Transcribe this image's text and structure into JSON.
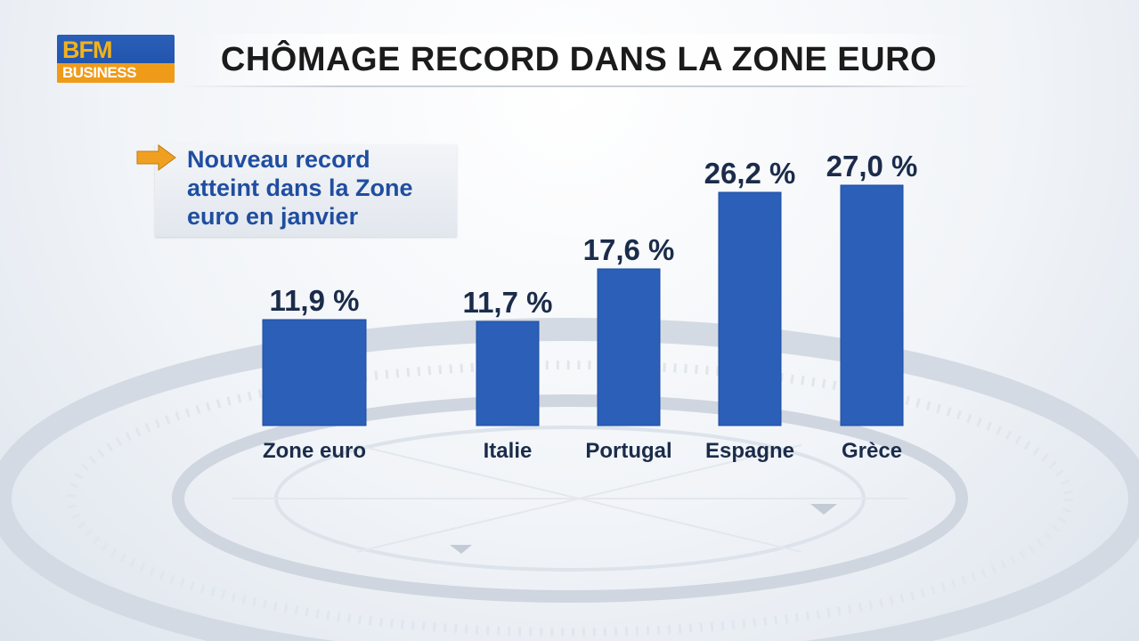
{
  "header": {
    "logo_top": "BFM",
    "logo_bottom": "BUSINESS",
    "title": "CHÔMAGE RECORD DANS LA ZONE EURO"
  },
  "callout": {
    "icon": "arrow-right-icon",
    "text": "Nouveau record\natteint dans la Zone\neuro en janvier"
  },
  "colors": {
    "bar": "#2b5fb8",
    "bar_dark": "#1d4ea2",
    "accent": "#f0a020",
    "label": "#1b2c4a"
  },
  "chart_data": {
    "type": "bar",
    "categories": [
      "Zone euro",
      "Italie",
      "Portugal",
      "Espagne",
      "Grèce"
    ],
    "values": [
      11.9,
      11.7,
      17.6,
      26.2,
      27.0
    ],
    "value_labels": [
      "11,9 %",
      "11,7 %",
      "17,6 %",
      "26,2 %",
      "27,0 %"
    ],
    "unit": "%",
    "title": "CHÔMAGE RECORD DANS LA ZONE EURO",
    "xlabel": "",
    "ylabel": "",
    "grid": false,
    "axes_visible": false
  }
}
